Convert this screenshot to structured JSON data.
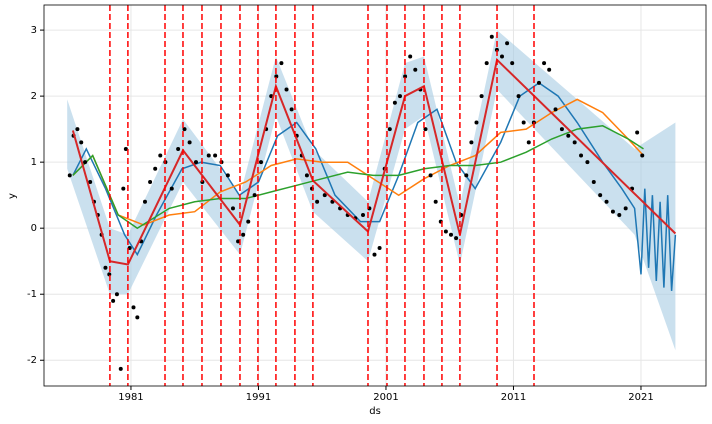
{
  "chart_data": {
    "type": "scatter",
    "xlabel": "ds",
    "ylabel": "y",
    "xlim": [
      1974.18,
      2026.1
    ],
    "ylim": [
      -2.39,
      3.38
    ],
    "xticks": [
      1981,
      1991,
      2001,
      2011,
      2021
    ],
    "yticks": [
      -2,
      -1,
      0,
      1,
      2,
      3
    ],
    "grid": true,
    "band": {
      "color": "#a6cce3",
      "x": [
        1976,
        1979.35,
        1980.76,
        1985.08,
        1989.55,
        1992.37,
        1995.27,
        1999.59,
        2002.49,
        2003.98,
        2006.8,
        2009.71,
        2020.5,
        2023.7
      ],
      "upper": [
        1.95,
        0.0,
        -0.1,
        1.65,
        0.5,
        2.6,
        1.2,
        0.4,
        2.5,
        2.6,
        0.35,
        3.0,
        1.2,
        1.6
      ],
      "lower": [
        0.9,
        -1.0,
        -1.0,
        0.7,
        -0.4,
        1.7,
        0.25,
        -0.5,
        1.5,
        1.7,
        -0.55,
        2.1,
        -0.1,
        -1.85
      ]
    },
    "lines": [
      {
        "color": "#1f77b4",
        "x": [
          1976.45,
          1977.5,
          1979,
          1980.5,
          1981.5,
          1983,
          1985,
          1986.5,
          1988,
          1989.5,
          1991,
          1992.5,
          1994,
          1995.5,
          1997,
          1999,
          2000.5,
          2002,
          2003.5,
          2005,
          2006.5,
          2008,
          2010,
          2011.5,
          2013,
          2014.5,
          2016,
          2018,
          2019.5,
          2020.5,
          2021,
          2021.3,
          2021.6,
          2021.9,
          2022.2,
          2022.5,
          2022.8,
          2023.1,
          2023.4,
          2023.7
        ],
        "values": [
          0.8,
          1.2,
          0.6,
          -0.1,
          -0.4,
          0.2,
          0.9,
          1.0,
          0.95,
          0.5,
          0.7,
          1.4,
          1.6,
          1.2,
          0.5,
          0.1,
          0.1,
          0.8,
          1.6,
          1.8,
          1.0,
          0.6,
          1.3,
          2.0,
          2.2,
          2.0,
          1.6,
          1.0,
          0.6,
          0.3,
          -0.7,
          0.6,
          -0.6,
          0.5,
          -0.8,
          0.4,
          -0.9,
          0.5,
          -0.95,
          -0.1
        ]
      },
      {
        "color": "#ff7f0e",
        "x": [
          1976.45,
          1978,
          1980,
          1982,
          1984,
          1986,
          1988,
          1990,
          1992,
          1994,
          1996,
          1998,
          2000,
          2002,
          2004,
          2006,
          2008,
          2010,
          2012,
          2014,
          2016,
          2018,
          2020,
          2021.2
        ],
        "values": [
          0.8,
          1.1,
          0.2,
          0.05,
          0.2,
          0.25,
          0.55,
          0.7,
          0.95,
          1.05,
          1.0,
          1.0,
          0.75,
          0.5,
          0.75,
          0.95,
          1.1,
          1.45,
          1.5,
          1.75,
          1.95,
          1.75,
          1.35,
          1.1
        ]
      },
      {
        "color": "#2ca02c",
        "x": [
          1976.45,
          1978,
          1980,
          1981.5,
          1984,
          1986,
          1988,
          1990,
          1992,
          1994,
          1996,
          1998,
          2000,
          2002,
          2004,
          2006,
          2008,
          2010,
          2012,
          2014,
          2016,
          2018,
          2020,
          2021.2
        ],
        "values": [
          0.8,
          1.1,
          0.2,
          0.0,
          0.3,
          0.4,
          0.45,
          0.45,
          0.55,
          0.65,
          0.75,
          0.85,
          0.8,
          0.8,
          0.9,
          0.95,
          0.95,
          1.0,
          1.15,
          1.35,
          1.5,
          1.55,
          1.35,
          1.2
        ]
      }
    ],
    "trend": {
      "color": "#d62728",
      "x": [
        1976.45,
        1979.35,
        1980.76,
        1985.08,
        1989.55,
        1992.37,
        1995.27,
        1999.59,
        2002.49,
        2003.98,
        2006.8,
        2009.71,
        2023.7
      ],
      "values": [
        1.48,
        -0.5,
        -0.55,
        1.18,
        0.05,
        2.15,
        0.72,
        -0.05,
        2.0,
        2.15,
        -0.1,
        2.55,
        -0.08
      ]
    },
    "changepoints": {
      "color": "#ff0000",
      "x": [
        1979.35,
        1980.76,
        1983.67,
        1985.08,
        1986.57,
        1988.06,
        1989.55,
        1990.96,
        1992.37,
        1993.86,
        1995.27,
        1999.59,
        2001.08,
        2002.49,
        2003.98,
        2005.39,
        2006.8,
        2009.71,
        2012.61
      ]
    },
    "points": {
      "color": "#000000",
      "x": [
        1976.2,
        1976.5,
        1976.8,
        1977.1,
        1977.4,
        1977.8,
        1978.1,
        1978.4,
        1978.7,
        1979.0,
        1979.3,
        1979.6,
        1979.9,
        1980.2,
        1980.4,
        1980.6,
        1980.9,
        1981.2,
        1981.5,
        1981.8,
        1982.1,
        1982.5,
        1982.9,
        1983.3,
        1983.7,
        1984.2,
        1984.7,
        1985.2,
        1985.6,
        1986.1,
        1986.6,
        1987.1,
        1987.6,
        1988.1,
        1988.6,
        1989.0,
        1989.4,
        1989.8,
        1990.2,
        1990.7,
        1991.2,
        1991.6,
        1992.0,
        1992.4,
        1992.8,
        1993.2,
        1993.6,
        1994.0,
        1994.4,
        1994.8,
        1995.2,
        1995.6,
        1996.2,
        1996.8,
        1997.4,
        1998.0,
        1998.6,
        1999.2,
        1999.7,
        2000.1,
        2000.5,
        2000.9,
        2001.3,
        2001.7,
        2002.1,
        2002.5,
        2002.9,
        2003.3,
        2003.7,
        2004.1,
        2004.5,
        2004.9,
        2005.3,
        2005.7,
        2006.1,
        2006.5,
        2006.9,
        2007.3,
        2007.7,
        2008.1,
        2008.5,
        2008.9,
        2009.3,
        2009.7,
        2010.1,
        2010.5,
        2010.9,
        2011.4,
        2011.8,
        2012.2,
        2012.6,
        2013.0,
        2013.4,
        2013.8,
        2014.3,
        2014.8,
        2015.3,
        2015.8,
        2016.3,
        2016.8,
        2017.3,
        2017.8,
        2018.3,
        2018.8,
        2019.3,
        2019.8,
        2020.3,
        2020.7,
        2021.1
      ],
      "values": [
        0.8,
        1.4,
        1.5,
        1.3,
        1.0,
        0.7,
        0.4,
        0.2,
        -0.1,
        -0.6,
        -0.7,
        -1.1,
        -1.0,
        -2.13,
        0.6,
        1.2,
        -0.3,
        -1.2,
        -1.35,
        -0.2,
        0.4,
        0.7,
        0.9,
        1.1,
        1.0,
        0.6,
        1.2,
        1.5,
        1.3,
        1.0,
        0.7,
        1.1,
        1.1,
        1.0,
        0.8,
        0.3,
        -0.2,
        -0.1,
        0.1,
        0.5,
        1.0,
        1.5,
        2.0,
        2.3,
        2.5,
        2.1,
        1.8,
        1.4,
        1.1,
        0.8,
        0.6,
        0.4,
        0.5,
        0.4,
        0.3,
        0.2,
        0.15,
        0.2,
        0.3,
        -0.4,
        -0.3,
        0.9,
        1.5,
        1.9,
        2.0,
        2.3,
        2.6,
        2.4,
        2.1,
        1.5,
        0.8,
        0.4,
        0.1,
        -0.05,
        -0.1,
        -0.15,
        0.2,
        0.8,
        1.3,
        1.6,
        2.0,
        2.5,
        2.9,
        2.7,
        2.6,
        2.8,
        2.5,
        2.0,
        1.6,
        1.3,
        1.6,
        2.2,
        2.5,
        2.4,
        1.8,
        1.5,
        1.4,
        1.3,
        1.1,
        1.0,
        0.7,
        0.5,
        0.4,
        0.25,
        0.2,
        0.3,
        0.6,
        1.45,
        1.1
      ]
    }
  }
}
